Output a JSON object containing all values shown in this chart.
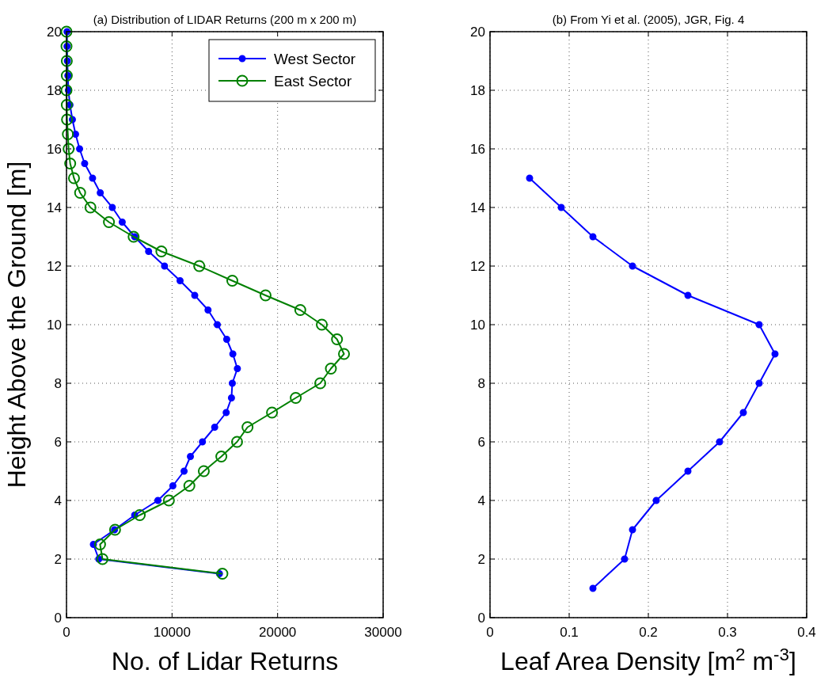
{
  "chart_data": [
    {
      "type": "line",
      "title": "(a) Distribution of LIDAR Returns (200 m x 200 m)",
      "xlabel": "No. of Lidar Returns",
      "ylabel": "Height Above the Ground [m]",
      "xlim": [
        0,
        30000
      ],
      "xticks": [
        0,
        10000,
        20000,
        30000
      ],
      "ylim": [
        0,
        20
      ],
      "yticks": [
        0,
        2,
        4,
        6,
        8,
        10,
        12,
        14,
        16,
        18,
        20
      ],
      "grid": true,
      "legend": "top right",
      "line_style": "solid",
      "series": [
        {
          "name": "West Sector",
          "color": "#0000ff",
          "marker": "circle",
          "x": [
            50,
            50,
            80,
            130,
            180,
            330,
            560,
            860,
            1240,
            1720,
            2470,
            3200,
            4340,
            5280,
            6460,
            7780,
            9290,
            10760,
            12150,
            13410,
            14290,
            15180,
            15760,
            16190,
            15710,
            15630,
            15130,
            14040,
            12880,
            11740,
            11140,
            10080,
            8660,
            6460,
            4550,
            2550,
            3060,
            14490
          ],
          "values": [
            20,
            19.5,
            19,
            18.5,
            18,
            17.5,
            17,
            16.5,
            16,
            15.5,
            15,
            14.5,
            14,
            13.5,
            13,
            12.5,
            12,
            11.5,
            11,
            10.5,
            10,
            9.5,
            9,
            8.5,
            8,
            7.5,
            7,
            6.5,
            6,
            5.5,
            5,
            4.5,
            4,
            3.5,
            3,
            2.5,
            2,
            1.5
          ]
        },
        {
          "name": "East Sector",
          "color": "#008000",
          "marker": "circle",
          "x": [
            0,
            0,
            30,
            30,
            0,
            30,
            50,
            130,
            200,
            350,
            710,
            1290,
            2270,
            4020,
            6360,
            8990,
            12580,
            15710,
            18860,
            22150,
            24190,
            25630,
            26290,
            25050,
            24040,
            21720,
            19470,
            17150,
            16160,
            14670,
            13010,
            11640,
            9700,
            6940,
            4600,
            3180,
            3410,
            14770
          ],
          "values": [
            20,
            19.5,
            19,
            18.5,
            18,
            17.5,
            17,
            16.5,
            16,
            15.5,
            15,
            14.5,
            14,
            13.5,
            13,
            12.5,
            12,
            11.5,
            11,
            10.5,
            10,
            9.5,
            9,
            8.5,
            8,
            7.5,
            7,
            6.5,
            6,
            5.5,
            5,
            4.5,
            4,
            3.5,
            3,
            2.5,
            2,
            1.5
          ]
        }
      ]
    },
    {
      "type": "line",
      "title": "(b) From Yi et al. (2005), JGR, Fig. 4",
      "xlabel": "Leaf Area Density  [m$^{2}$ m$^{-3}$]",
      "xlim": [
        0,
        0.4
      ],
      "xticks": [
        0,
        0.1,
        0.2,
        0.3,
        0.4
      ],
      "ylim": [
        0,
        20
      ],
      "yticks": [
        0,
        2,
        4,
        6,
        8,
        10,
        12,
        14,
        16,
        18,
        20
      ],
      "grid": true,
      "line_style": "solid",
      "series": [
        {
          "color": "#0000ff",
          "marker": "circle",
          "x": [
            0.05,
            0.09,
            0.13,
            0.18,
            0.25,
            0.34,
            0.36,
            0.34,
            0.32,
            0.29,
            0.25,
            0.21,
            0.18,
            0.17,
            0.13
          ],
          "values": [
            15,
            14,
            13,
            12,
            11,
            10,
            9,
            8,
            7,
            6,
            5,
            4,
            3,
            2,
            1
          ]
        }
      ]
    }
  ]
}
